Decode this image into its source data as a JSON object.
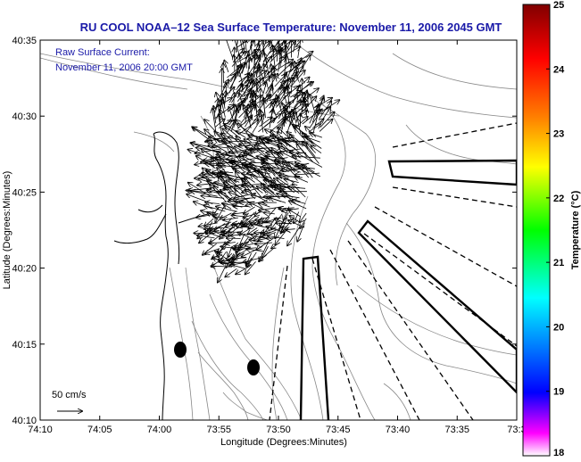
{
  "title": "RU COOL  NOAA–12  Sea Surface Temperature:  November 11, 2006 2045 GMT",
  "annotation_line1": "Raw Surface Current:",
  "annotation_line2": "November 11, 2006 20:00 GMT",
  "scale_label": "50 cm/s",
  "x_axis": {
    "label": "Longitude (Degrees:Minutes)",
    "ticks": [
      "74:10",
      "74:05",
      "74:00",
      "73:55",
      "73:50",
      "73:45",
      "73:40",
      "73:35",
      "73:3"
    ]
  },
  "y_axis": {
    "label": "Latitude (Degrees:Minutes)",
    "ticks": [
      "40:35",
      "40:30",
      "40:25",
      "40:20",
      "40:15",
      "40:10"
    ]
  },
  "colorbar": {
    "label": "Temperature (°C)",
    "ticks": [
      "25",
      "24",
      "23",
      "22",
      "21",
      "20",
      "19",
      "18"
    ],
    "range": [
      18,
      25
    ],
    "colors": [
      "#ff00ff",
      "#0000ff",
      "#00ffff",
      "#00ff00",
      "#ffff00",
      "#ff8000",
      "#ff0000",
      "#8b0000"
    ]
  },
  "colors": {
    "title": "#1a1aa8",
    "coastline": "#000000",
    "bathymetry": "#888888",
    "vectors": "#000000"
  }
}
